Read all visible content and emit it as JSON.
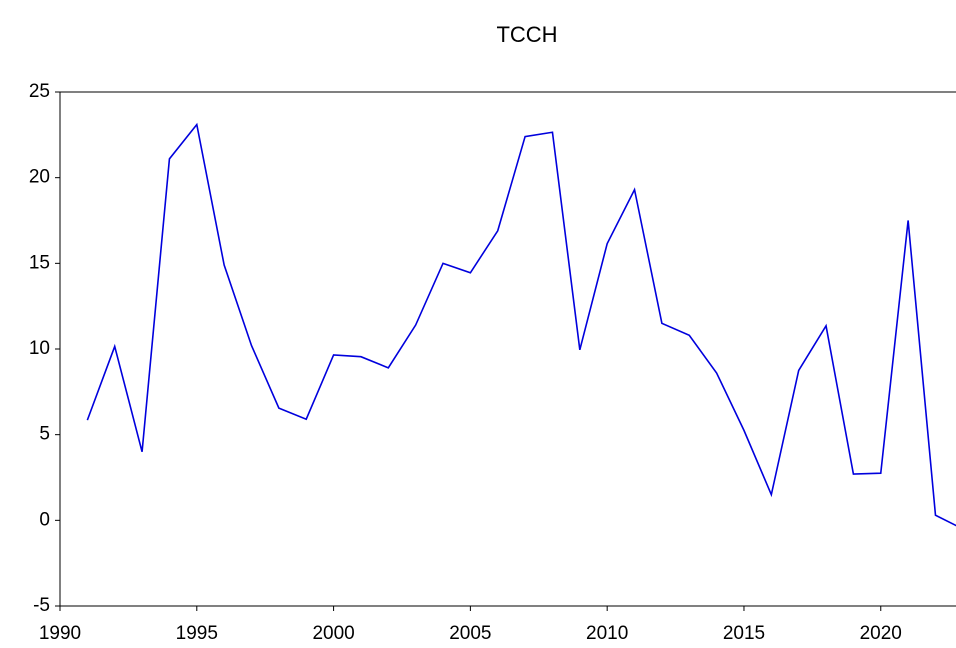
{
  "chart_data": {
    "type": "line",
    "title": "TCCH",
    "x": [
      1991,
      1992,
      1993,
      1994,
      1995,
      1996,
      1997,
      1998,
      1999,
      2000,
      2001,
      2002,
      2003,
      2004,
      2005,
      2006,
      2007,
      2008,
      2009,
      2010,
      2011,
      2012,
      2013,
      2014,
      2015,
      2016,
      2017,
      2018,
      2019,
      2020,
      2021,
      2022,
      2023
    ],
    "series": [
      {
        "name": "TCCH",
        "color": "#0000dd",
        "values": [
          5.85,
          10.15,
          4.0,
          21.1,
          23.1,
          14.9,
          10.2,
          6.55,
          5.9,
          9.65,
          9.55,
          8.9,
          11.4,
          15.0,
          14.45,
          16.9,
          22.4,
          22.65,
          9.95,
          16.15,
          19.3,
          11.5,
          10.8,
          8.6,
          5.25,
          1.5,
          8.75,
          11.35,
          2.7,
          2.75,
          17.5,
          0.3,
          -0.5
        ]
      }
    ],
    "xlim": [
      1990,
      2022.75
    ],
    "xticks": [
      1990,
      1995,
      2000,
      2005,
      2010,
      2015,
      2020
    ],
    "ylim": [
      -5,
      25
    ],
    "yticks": [
      -5,
      0,
      5,
      10,
      15,
      20,
      25
    ]
  }
}
